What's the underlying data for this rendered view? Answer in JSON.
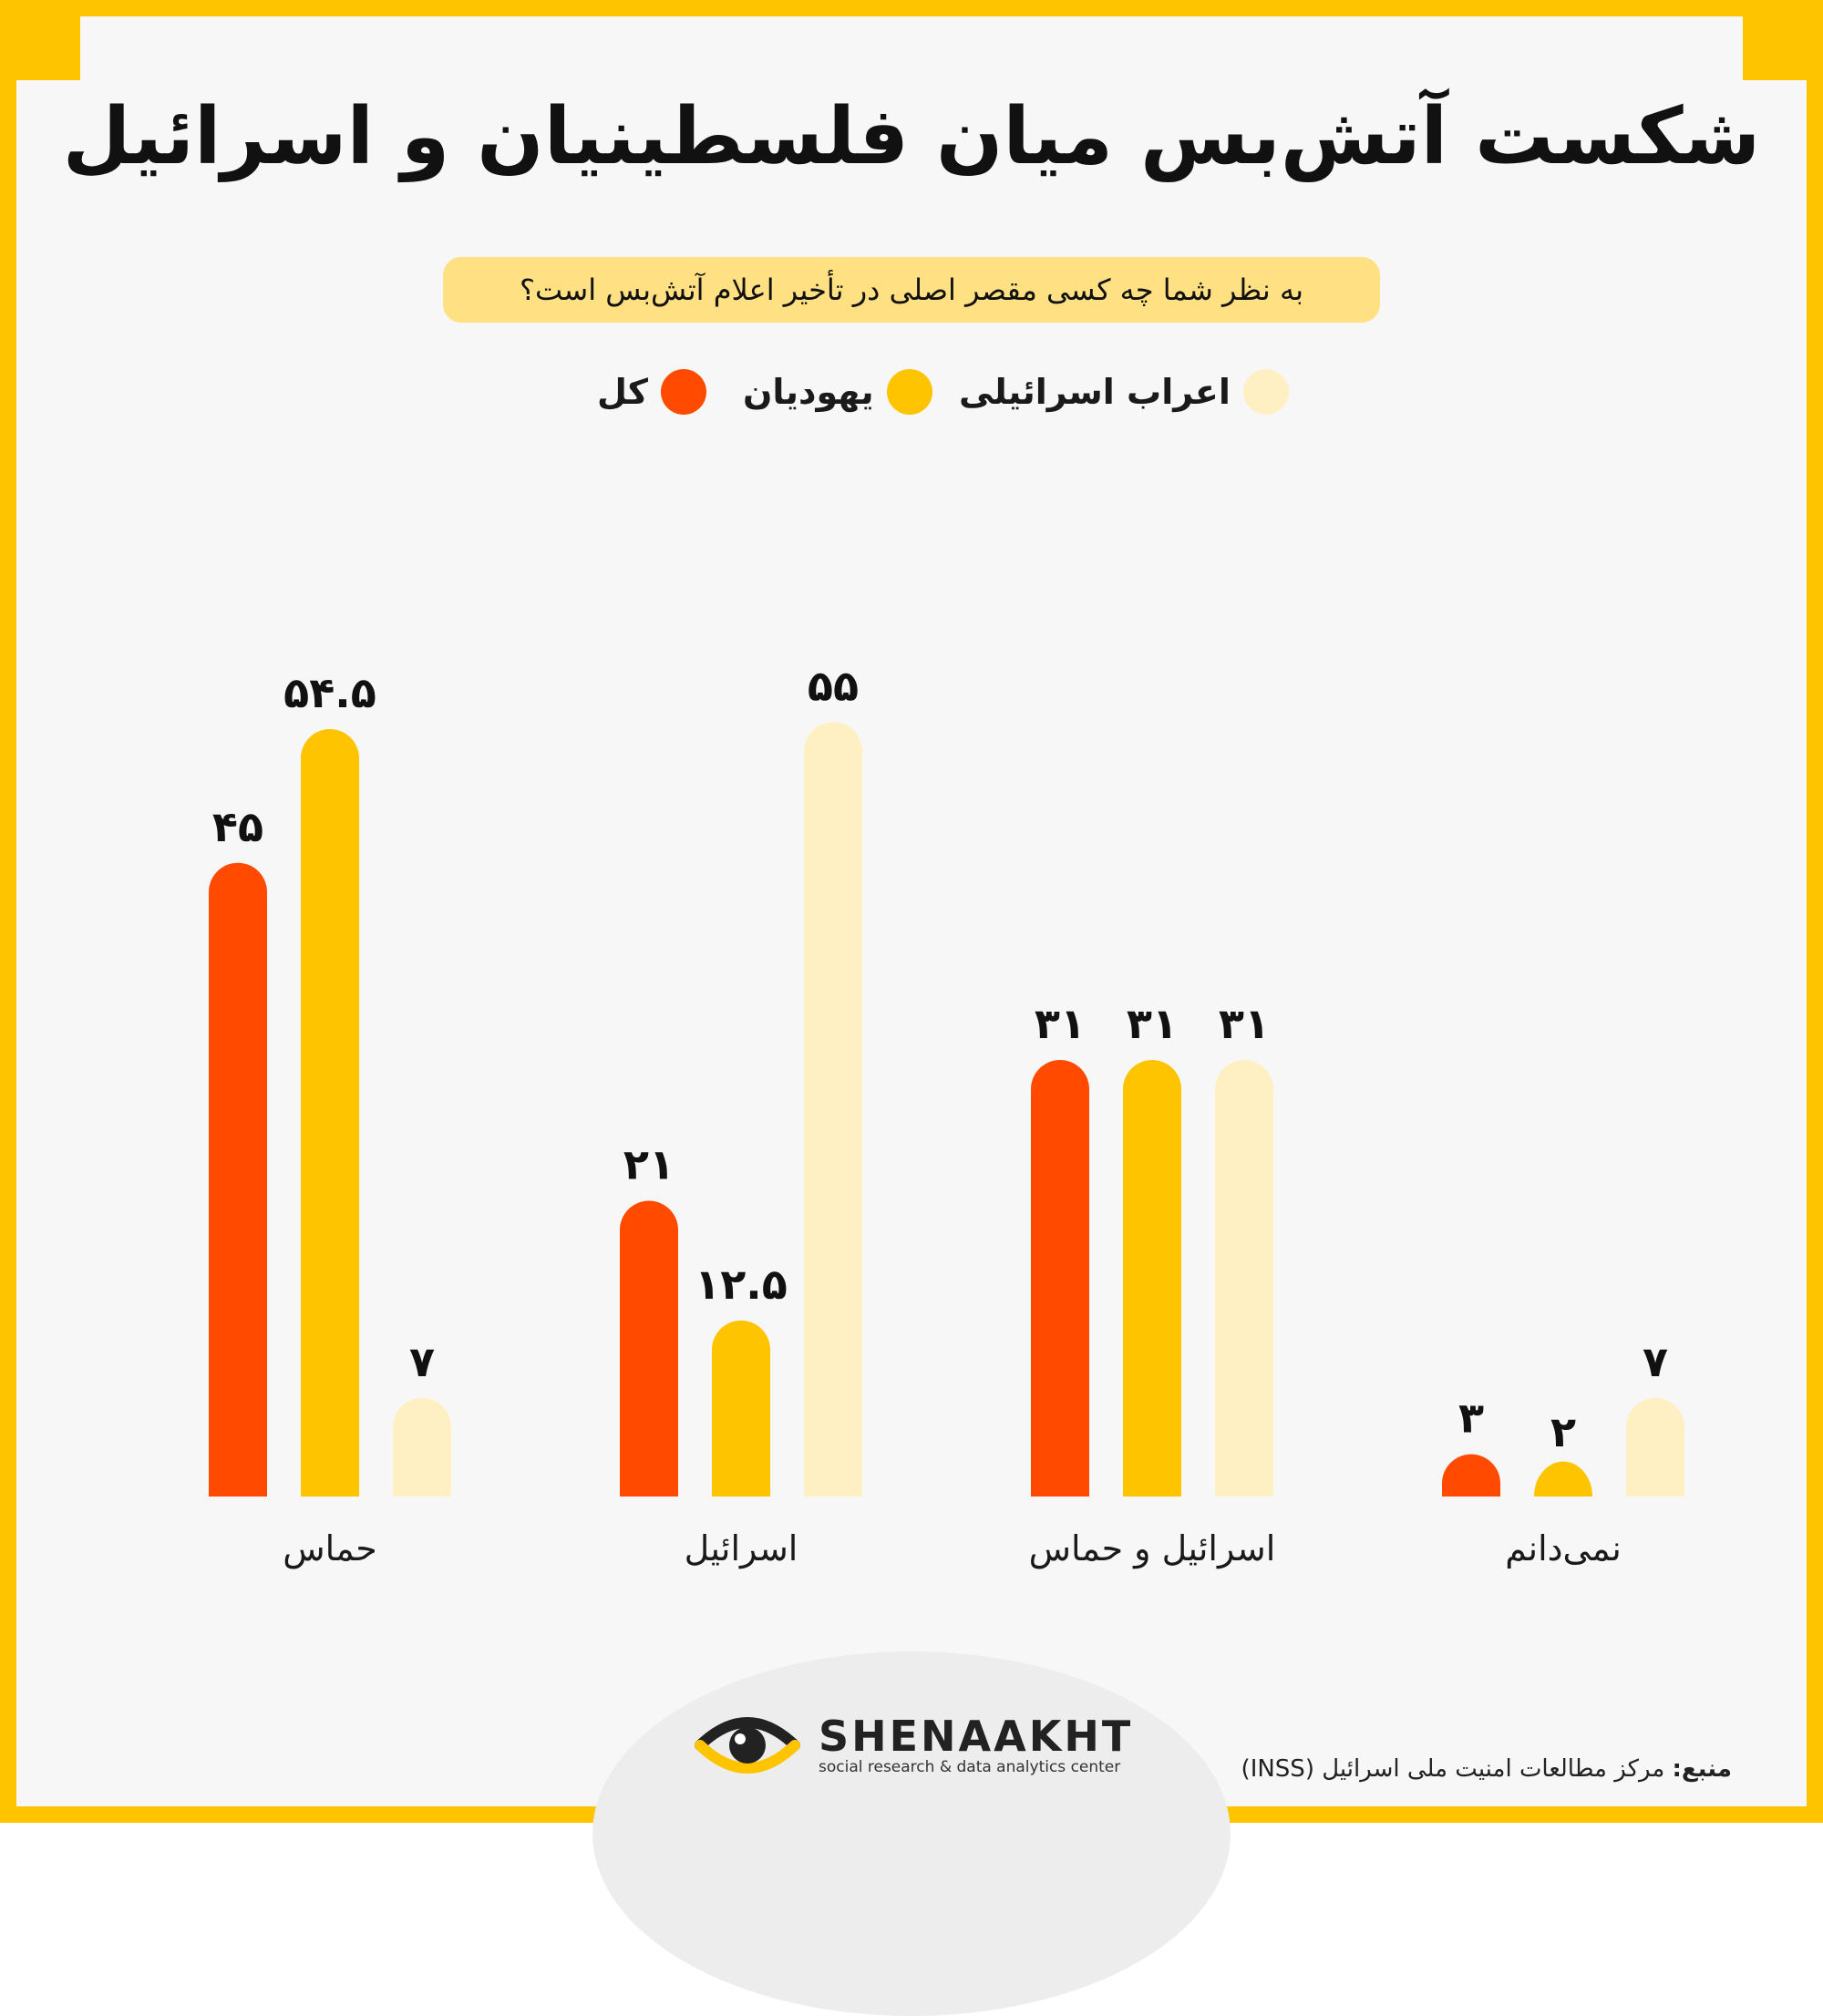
{
  "title": "شکست آتش‌بس میان فلسطینیان و اسرائیل",
  "subtitle": "به نظر شما چه کسی مقصر اصلی در تأخیر اعلام آتش‌بس است؟",
  "colors": {
    "frame": "#FFC400",
    "total": "#FF4A00",
    "jews": "#FFC400",
    "arabs": "#FFF0C4"
  },
  "chart_data": {
    "type": "bar",
    "categories": [
      "حماس",
      "اسرائیل",
      "اسرائیل و حماس",
      "نمی‌دانم"
    ],
    "series": [
      {
        "name": "کل",
        "values": [
          45,
          21,
          31,
          3
        ],
        "labels": [
          "۴۵",
          "۲۱",
          "۳۱",
          "۳"
        ]
      },
      {
        "name": "یهودیان",
        "values": [
          54.5,
          12.5,
          31,
          2
        ],
        "labels": [
          "۵۴.۵",
          "۱۲.۵",
          "۳۱",
          "۲"
        ]
      },
      {
        "name": "اعراب اسرائیلی",
        "values": [
          7,
          55,
          31,
          7
        ],
        "labels": [
          "۷",
          "۵۵",
          "۳۱",
          "۷"
        ]
      }
    ],
    "ylim": [
      0,
      60
    ],
    "grid": false,
    "legend_position": "top-center"
  },
  "logo": {
    "name": "SHENAAKHT",
    "tagline": "social research & data analytics center",
    "icon": "eye-icon"
  },
  "source": {
    "label": "منبع:",
    "text": "مرکز مطالعات امنیت ملی اسرائیل (INSS)"
  }
}
